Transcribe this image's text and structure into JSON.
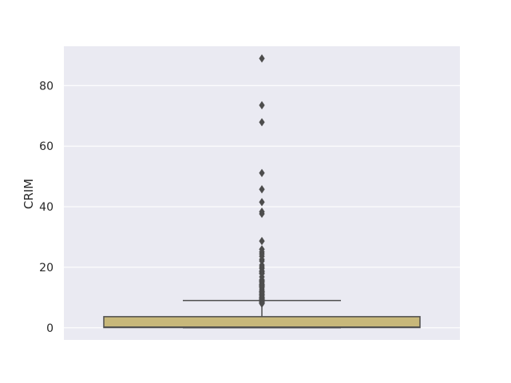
{
  "chart_data": {
    "type": "box",
    "ylabel": "CRIM",
    "xlabel": "",
    "title": "",
    "ylim": [
      -4,
      93
    ],
    "yticks": [
      0,
      20,
      40,
      60,
      80
    ],
    "grid": true,
    "colors": {
      "background": "#eaeaf2",
      "grid": "#ffffff",
      "box_fill": "#c8b87a",
      "line": "#4d4d4d"
    },
    "box": {
      "q1": 0.08,
      "median": 0.26,
      "q3": 3.68,
      "whisker_low": 0.006,
      "whisker_high": 9.0
    },
    "outliers": [
      88.98,
      73.53,
      67.92,
      51.14,
      45.75,
      41.53,
      38.35,
      37.66,
      28.66,
      25.94,
      25.05,
      24.39,
      23.65,
      22.6,
      22.05,
      20.72,
      20.08,
      19.61,
      18.81,
      18.5,
      18.08,
      17.87,
      16.81,
      15.87,
      15.58,
      15.29,
      15.02,
      14.44,
      14.33,
      14.24,
      14.05,
      13.91,
      13.68,
      13.52,
      13.36,
      12.8,
      12.25,
      12.05,
      11.95,
      11.81,
      11.58,
      11.16,
      11.11,
      11.08,
      10.83,
      10.67,
      10.23,
      10.06,
      9.97,
      9.93,
      9.92,
      9.82,
      9.72,
      9.51,
      9.39,
      9.34,
      9.33,
      9.19,
      9.23,
      8.98,
      8.79,
      8.72,
      8.64,
      8.49,
      8.27,
      8.25,
      8.24,
      8.2,
      8.15,
      8.05,
      7.99
    ]
  }
}
